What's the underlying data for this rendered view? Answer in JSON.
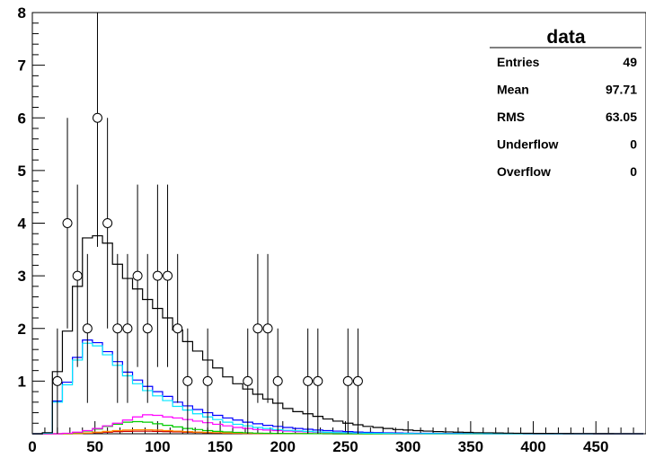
{
  "chart_data": {
    "type": "histogram",
    "title": "",
    "xlabel": "",
    "ylabel": "",
    "xlim": [
      0,
      490
    ],
    "ylim": [
      0,
      8
    ],
    "x_ticks": [
      0,
      50,
      100,
      150,
      200,
      250,
      300,
      350,
      400,
      450
    ],
    "y_ticks": [
      1,
      2,
      3,
      4,
      5,
      6,
      7,
      8
    ],
    "bin_width": 8,
    "data_points": {
      "marker": "open-circle",
      "x": [
        20,
        28,
        36,
        44,
        52,
        60,
        68,
        76,
        84,
        92,
        100,
        108,
        116,
        124,
        140,
        172,
        180,
        188,
        196,
        220,
        228,
        252,
        260
      ],
      "y": [
        1,
        4,
        3,
        2,
        6,
        4,
        2,
        2,
        3,
        2,
        3,
        3,
        2,
        1,
        1,
        1,
        2,
        2,
        1,
        1,
        1,
        1,
        1
      ]
    },
    "series": [
      {
        "color": "#000000",
        "bin_edges": [
          0,
          8,
          16,
          24,
          32,
          40,
          48,
          56,
          64,
          72,
          80,
          88,
          96,
          104,
          112,
          120,
          128,
          136,
          144,
          152,
          160,
          168,
          176,
          184,
          192,
          200,
          208,
          216,
          224,
          232,
          240,
          248,
          256,
          264,
          272,
          280,
          288,
          296,
          304,
          312,
          320,
          328,
          336,
          344,
          352,
          360,
          368,
          376,
          384,
          392,
          400,
          408,
          416,
          424,
          432,
          440,
          448,
          456,
          464,
          472,
          480,
          488
        ],
        "values": [
          0,
          0.02,
          1.18,
          1.95,
          2.8,
          3.72,
          3.76,
          3.62,
          3.22,
          2.95,
          2.75,
          2.55,
          2.38,
          2.2,
          1.97,
          1.75,
          1.57,
          1.4,
          1.25,
          1.08,
          0.95,
          0.85,
          0.75,
          0.66,
          0.58,
          0.48,
          0.42,
          0.38,
          0.33,
          0.28,
          0.24,
          0.2,
          0.17,
          0.14,
          0.12,
          0.1,
          0.08,
          0.07,
          0.06,
          0.05,
          0.04,
          0.035,
          0.03,
          0.025,
          0.02,
          0.018,
          0.015,
          0.012,
          0.01,
          0.008,
          0.007,
          0.006,
          0.005,
          0.004,
          0.003,
          0.003,
          0.002,
          0.002,
          0.001,
          0.001,
          0.001
        ]
      },
      {
        "color": "#00e5ff",
        "bin_edges": [
          0,
          8,
          16,
          24,
          32,
          40,
          48,
          56,
          64,
          72,
          80,
          88,
          96,
          104,
          112,
          120,
          128,
          136,
          144,
          152,
          160,
          168,
          176,
          184,
          192,
          200,
          208,
          216,
          224,
          232,
          240,
          248,
          256,
          264,
          272,
          280,
          288,
          296,
          304,
          312,
          320,
          328,
          336,
          344,
          352,
          360,
          368,
          376,
          384,
          392,
          400,
          408,
          416,
          424,
          432,
          440,
          448,
          456,
          464,
          472,
          480,
          488
        ],
        "values": [
          0,
          0.01,
          0.6,
          0.93,
          1.4,
          1.72,
          1.67,
          1.5,
          1.3,
          1.1,
          0.95,
          0.82,
          0.72,
          0.63,
          0.52,
          0.45,
          0.38,
          0.32,
          0.27,
          0.22,
          0.18,
          0.15,
          0.12,
          0.1,
          0.08,
          0.065,
          0.055,
          0.045,
          0.035,
          0.028,
          0.022,
          0.018,
          0.014,
          0.011,
          0.009,
          0.007,
          0.005,
          0.004,
          0.003,
          0.002,
          0.002,
          0.001,
          0.001,
          0.001,
          0.001,
          0,
          0,
          0,
          0,
          0,
          0,
          0,
          0,
          0,
          0,
          0,
          0,
          0,
          0,
          0,
          0
        ]
      },
      {
        "color": "#0000ff",
        "bin_edges": [
          0,
          8,
          16,
          24,
          32,
          40,
          48,
          56,
          64,
          72,
          80,
          88,
          96,
          104,
          112,
          120,
          128,
          136,
          144,
          152,
          160,
          168,
          176,
          184,
          192,
          200,
          208,
          216,
          224,
          232,
          240,
          248,
          256,
          264,
          272,
          280,
          288,
          296,
          304,
          312,
          320,
          328,
          336,
          344,
          352,
          360,
          368,
          376,
          384,
          392,
          400,
          408,
          416,
          424,
          432,
          440,
          448,
          456,
          464,
          472,
          480,
          488
        ],
        "values": [
          0,
          0.01,
          0.62,
          0.98,
          1.45,
          1.78,
          1.73,
          1.56,
          1.37,
          1.17,
          1.02,
          0.9,
          0.8,
          0.71,
          0.6,
          0.53,
          0.46,
          0.4,
          0.35,
          0.3,
          0.26,
          0.22,
          0.19,
          0.16,
          0.14,
          0.12,
          0.1,
          0.085,
          0.07,
          0.06,
          0.05,
          0.04,
          0.033,
          0.027,
          0.022,
          0.018,
          0.015,
          0.012,
          0.01,
          0.008,
          0.006,
          0.005,
          0.004,
          0.003,
          0.002,
          0.002,
          0.001,
          0.001,
          0.001,
          0,
          0,
          0,
          0,
          0,
          0,
          0,
          0,
          0,
          0,
          0,
          0
        ]
      },
      {
        "color": "#ff00ff",
        "bin_edges": [
          0,
          8,
          16,
          24,
          32,
          40,
          48,
          56,
          64,
          72,
          80,
          88,
          96,
          104,
          112,
          120,
          128,
          136,
          144,
          152,
          160,
          168,
          176,
          184,
          192,
          200,
          208,
          216,
          224,
          232,
          240,
          248,
          256,
          264,
          272,
          280,
          288,
          296,
          304,
          312,
          320,
          328,
          336,
          344,
          352,
          360,
          368,
          376,
          384,
          392,
          400,
          408,
          416,
          424,
          432,
          440,
          448,
          456,
          464,
          472,
          480,
          488
        ],
        "values": [
          0,
          0,
          0,
          0.01,
          0.03,
          0.06,
          0.1,
          0.15,
          0.2,
          0.26,
          0.32,
          0.36,
          0.35,
          0.32,
          0.3,
          0.27,
          0.24,
          0.21,
          0.18,
          0.15,
          0.12,
          0.1,
          0.08,
          0.07,
          0.06,
          0.05,
          0.04,
          0.035,
          0.03,
          0.025,
          0.02,
          0.017,
          0.014,
          0.012,
          0.01,
          0.008,
          0.006,
          0.005,
          0.004,
          0.003,
          0.002,
          0.002,
          0.001,
          0.001,
          0.001,
          0,
          0,
          0,
          0,
          0,
          0,
          0,
          0,
          0,
          0,
          0,
          0,
          0,
          0,
          0,
          0
        ]
      },
      {
        "color": "#00cc00",
        "bin_edges": [
          0,
          8,
          16,
          24,
          32,
          40,
          48,
          56,
          64,
          72,
          80,
          88,
          96,
          104,
          112,
          120,
          128,
          136,
          144,
          152,
          160,
          168,
          176,
          184,
          192,
          200,
          208,
          216,
          224,
          232,
          240,
          248,
          256,
          264,
          272,
          280,
          288,
          296,
          304,
          312,
          320,
          328,
          336,
          344,
          352,
          360,
          368,
          376,
          384,
          392,
          400,
          408,
          416,
          424,
          432,
          440,
          448,
          456,
          464,
          472,
          480,
          488
        ],
        "values": [
          0,
          0,
          0,
          0.005,
          0.02,
          0.05,
          0.09,
          0.14,
          0.18,
          0.22,
          0.23,
          0.22,
          0.19,
          0.16,
          0.13,
          0.1,
          0.08,
          0.06,
          0.045,
          0.035,
          0.025,
          0.018,
          0.012,
          0.008,
          0.006,
          0.004,
          0.003,
          0.002,
          0.001,
          0.001,
          0,
          0,
          0,
          0,
          0,
          0,
          0,
          0,
          0,
          0,
          0,
          0,
          0,
          0,
          0,
          0,
          0,
          0,
          0,
          0,
          0,
          0,
          0,
          0,
          0,
          0,
          0,
          0,
          0,
          0,
          0
        ]
      },
      {
        "color": "#ff8800",
        "bin_edges": [
          0,
          8,
          16,
          24,
          32,
          40,
          48,
          56,
          64,
          72,
          80,
          88,
          96,
          104,
          112,
          120,
          128,
          136,
          144,
          152,
          160,
          168,
          176,
          184,
          192,
          200,
          208,
          216,
          224,
          232,
          240,
          248,
          256,
          264,
          272,
          280,
          288,
          296,
          304,
          312,
          320,
          328,
          336,
          344,
          352,
          360,
          368,
          376,
          384,
          392,
          400,
          408,
          416,
          424,
          432,
          440,
          448,
          456,
          464,
          472,
          480,
          488
        ],
        "values": [
          0,
          0,
          0,
          0,
          0.005,
          0.015,
          0.03,
          0.045,
          0.06,
          0.07,
          0.075,
          0.075,
          0.07,
          0.06,
          0.05,
          0.04,
          0.032,
          0.025,
          0.02,
          0.015,
          0.012,
          0.009,
          0.007,
          0.005,
          0.004,
          0.003,
          0.002,
          0.002,
          0.001,
          0.001,
          0,
          0,
          0,
          0,
          0,
          0,
          0,
          0,
          0,
          0,
          0,
          0,
          0,
          0,
          0,
          0,
          0,
          0,
          0,
          0,
          0,
          0,
          0,
          0,
          0,
          0,
          0,
          0,
          0,
          0,
          0
        ]
      },
      {
        "color": "#cc0000",
        "bin_edges": [
          0,
          8,
          16,
          24,
          32,
          40,
          48,
          56,
          64,
          72,
          80,
          88,
          96,
          104,
          112,
          120,
          128,
          136,
          144,
          152,
          160,
          168,
          176,
          184,
          192,
          200,
          208,
          216,
          224,
          232,
          240,
          248,
          256,
          264,
          272,
          280,
          288,
          296,
          304,
          312,
          320,
          328,
          336,
          344,
          352,
          360,
          368,
          376,
          384,
          392,
          400,
          408,
          416,
          424,
          432,
          440,
          448,
          456,
          464,
          472,
          480,
          488
        ],
        "values": [
          0,
          0,
          0,
          0,
          0.003,
          0.01,
          0.02,
          0.03,
          0.04,
          0.045,
          0.048,
          0.048,
          0.045,
          0.04,
          0.035,
          0.03,
          0.025,
          0.02,
          0.016,
          0.012,
          0.009,
          0.007,
          0.005,
          0.004,
          0.003,
          0.002,
          0.002,
          0.001,
          0.001,
          0,
          0,
          0,
          0,
          0,
          0,
          0,
          0,
          0,
          0,
          0,
          0,
          0,
          0,
          0,
          0,
          0,
          0,
          0,
          0,
          0,
          0,
          0,
          0,
          0,
          0,
          0,
          0,
          0,
          0,
          0,
          0
        ]
      }
    ],
    "stats_box": {
      "title": "data",
      "rows": [
        {
          "label": "Entries",
          "value": "49"
        },
        {
          "label": "Mean",
          "value": "97.71"
        },
        {
          "label": "RMS",
          "value": "63.05"
        },
        {
          "label": "Underflow",
          "value": "0"
        },
        {
          "label": "Overflow",
          "value": "0"
        }
      ]
    }
  }
}
